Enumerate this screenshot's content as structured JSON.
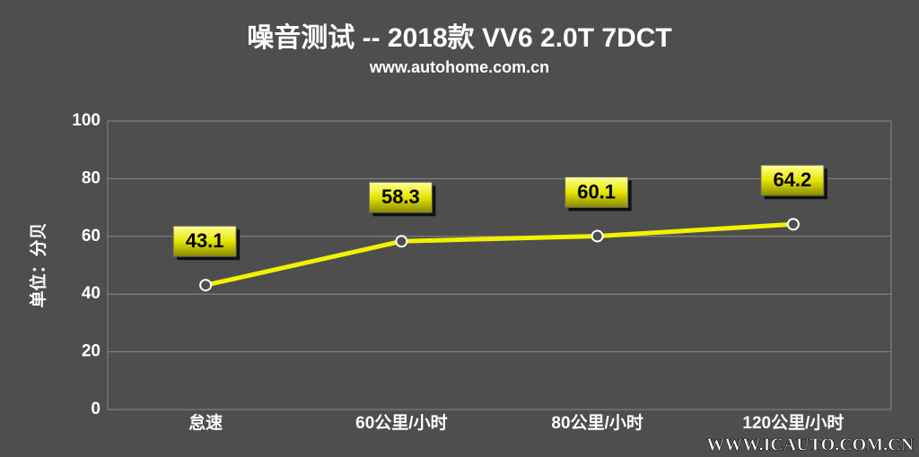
{
  "chart_data": {
    "type": "line",
    "title": "噪音测试 -- 2018款 VV6 2.0T 7DCT",
    "subtitle": "www.autohome.com.cn",
    "y_label": "单位：分贝",
    "watermark": "WWW.ICAUTO.COM.CN",
    "categories": [
      "怠速",
      "60公里/小时",
      "80公里/小时",
      "120公里/小时"
    ],
    "series": [
      {
        "name": "噪音",
        "color": "#f2f200",
        "values": [
          43.1,
          58.3,
          60.1,
          64.2
        ]
      }
    ],
    "ylim": [
      0,
      100
    ],
    "yticks": [
      0,
      20,
      40,
      60,
      80,
      100
    ],
    "grid": true
  }
}
